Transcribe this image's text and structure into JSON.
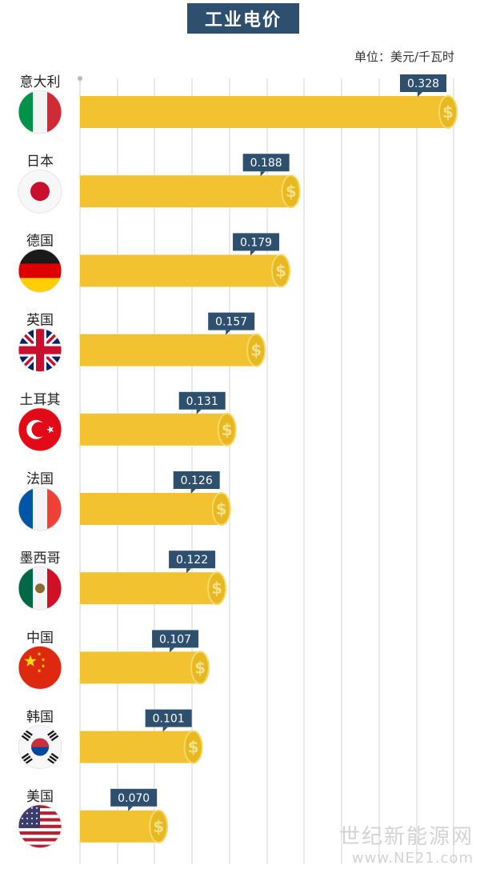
{
  "header": {
    "title": "工业电价",
    "unit": "单位：美元/千瓦时"
  },
  "chart_data": {
    "type": "bar",
    "orientation": "horizontal",
    "categories": [
      "意大利",
      "日本",
      "德国",
      "英国",
      "土耳其",
      "法国",
      "墨西哥",
      "中国",
      "韩国",
      "美国"
    ],
    "values": [
      0.328,
      0.188,
      0.179,
      0.157,
      0.131,
      0.126,
      0.122,
      0.107,
      0.101,
      0.07
    ],
    "value_labels": [
      "0.328",
      "0.188",
      "0.179",
      "0.157",
      "0.131",
      "0.126",
      "0.122",
      "0.107",
      "0.101",
      "0.070"
    ],
    "flag_icons": [
      "italy-flag-icon",
      "japan-flag-icon",
      "germany-flag-icon",
      "uk-flag-icon",
      "turkey-flag-icon",
      "france-flag-icon",
      "mexico-flag-icon",
      "china-flag-icon",
      "korea-flag-icon",
      "usa-flag-icon"
    ],
    "xlim": [
      0,
      0.328
    ],
    "grid": true,
    "title": "工业电价",
    "xlabel": "",
    "ylabel": ""
  },
  "colors": {
    "bar": "#f2c230",
    "coin": "#e8b820",
    "label_box": "#2f4f6f",
    "grid": "#d6d6d6"
  },
  "watermark": {
    "name": "世纪新能源网",
    "url": "www.NE21.com"
  }
}
